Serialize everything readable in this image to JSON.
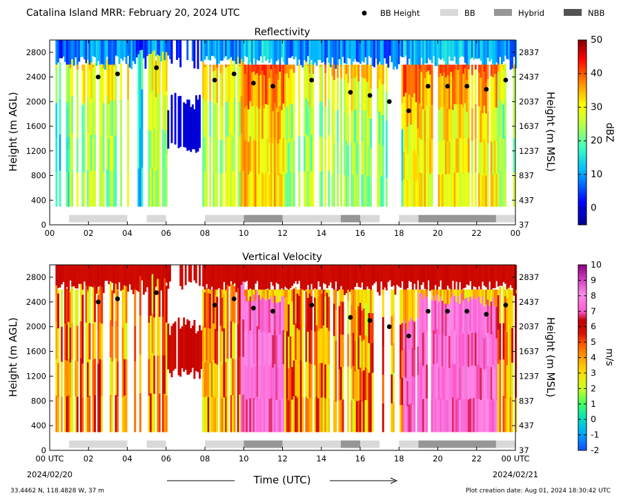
{
  "figure": {
    "title": "Catalina Island MRR:  February 20, 2024 UTC",
    "xlabel": "Time (UTC)",
    "date_start": "2024/02/20",
    "date_end": "2024/02/21",
    "location": "33.4462 N, 118.4828 W, 37 m",
    "creation": "Plot creation date: Aug 01, 2024 18:30:42 UTC"
  },
  "legend": [
    {
      "name": "BB Height",
      "type": "dot",
      "color": "#000000"
    },
    {
      "name": "BB",
      "type": "box",
      "color": "#d9d9d9"
    },
    {
      "name": "Hybrid",
      "type": "box",
      "color": "#969696"
    },
    {
      "name": "NBB",
      "type": "box",
      "color": "#525252"
    }
  ],
  "colors": {
    "bb": "#d9d9d9",
    "hybrid": "#969696",
    "nbb": "#525252",
    "dot": "#000000"
  },
  "chart_data": [
    {
      "type": "heatmap",
      "title": "Reflectivity",
      "ylabel": "Height (m AGL)",
      "y2label": "Height (m MSL)",
      "colorbar_label": "dBZ",
      "xlim": [
        0,
        24
      ],
      "ylim": [
        0,
        3000
      ],
      "x_ticks": [
        "00",
        "02",
        "04",
        "06",
        "08",
        "10",
        "12",
        "14",
        "16",
        "18",
        "20",
        "22",
        "00"
      ],
      "y_ticks": [
        0,
        400,
        800,
        1200,
        1600,
        2000,
        2400,
        2800
      ],
      "y2_ticks": [
        37,
        437,
        837,
        1237,
        1637,
        2037,
        2437,
        2837
      ],
      "colorbar_ticks": [
        0,
        10,
        20,
        30,
        40,
        50
      ],
      "colorbar_range": [
        -5,
        50
      ],
      "bb_height": {
        "time": [
          2.5,
          3.5,
          5.5,
          8.5,
          9.5,
          10.5,
          11.5,
          13.5,
          15.5,
          16.5,
          17.5,
          18.5,
          19.5,
          20.5,
          21.5,
          22.5,
          23.5
        ],
        "height": [
          2400,
          2450,
          2550,
          2350,
          2450,
          2300,
          2250,
          2350,
          2150,
          2100,
          2000,
          1850,
          2250,
          2250,
          2250,
          2200,
          2350
        ]
      },
      "classification": [
        {
          "start": 1.0,
          "end": 4.0,
          "type": "BB"
        },
        {
          "start": 5.0,
          "end": 6.0,
          "type": "BB"
        },
        {
          "start": 8.0,
          "end": 10.0,
          "type": "BB"
        },
        {
          "start": 10.0,
          "end": 12.0,
          "type": "Hybrid"
        },
        {
          "start": 12.0,
          "end": 15.0,
          "type": "BB"
        },
        {
          "start": 15.0,
          "end": 16.0,
          "type": "Hybrid"
        },
        {
          "start": 16.0,
          "end": 17.0,
          "type": "BB"
        },
        {
          "start": 18.0,
          "end": 19.0,
          "type": "BB"
        },
        {
          "start": 19.0,
          "end": 23.0,
          "type": "Hybrid"
        },
        {
          "start": 23.0,
          "end": 24.0,
          "type": "BB"
        }
      ]
    },
    {
      "type": "heatmap",
      "title": "Vertical Velocity",
      "ylabel": "Height (m AGL)",
      "y2label": "Height (m MSL)",
      "colorbar_label": "m/s",
      "xlim": [
        0,
        24
      ],
      "ylim": [
        0,
        3000
      ],
      "x_ticks": [
        "00 UTC",
        "02",
        "04",
        "06",
        "08",
        "10",
        "12",
        "14",
        "16",
        "18",
        "20",
        "22",
        "00 UTC"
      ],
      "y_ticks": [
        0,
        400,
        800,
        1200,
        1600,
        2000,
        2400,
        2800
      ],
      "y2_ticks": [
        37,
        437,
        837,
        1237,
        1637,
        2037,
        2437,
        2837
      ],
      "colorbar_ticks": [
        -2,
        -1,
        0,
        1,
        2,
        3,
        4,
        5,
        6,
        7,
        8,
        9,
        10
      ],
      "colorbar_range": [
        -2,
        10
      ],
      "bb_height": {
        "time": [
          2.5,
          3.5,
          5.5,
          8.5,
          9.5,
          10.5,
          11.5,
          13.5,
          15.5,
          16.5,
          17.5,
          18.5,
          19.5,
          20.5,
          21.5,
          22.5,
          23.5
        ],
        "height": [
          2400,
          2450,
          2550,
          2350,
          2450,
          2300,
          2250,
          2350,
          2150,
          2100,
          2000,
          1850,
          2250,
          2250,
          2250,
          2200,
          2350
        ]
      },
      "classification": [
        {
          "start": 1.0,
          "end": 4.0,
          "type": "BB"
        },
        {
          "start": 5.0,
          "end": 6.0,
          "type": "BB"
        },
        {
          "start": 8.0,
          "end": 10.0,
          "type": "BB"
        },
        {
          "start": 10.0,
          "end": 12.0,
          "type": "Hybrid"
        },
        {
          "start": 12.0,
          "end": 15.0,
          "type": "BB"
        },
        {
          "start": 15.0,
          "end": 16.0,
          "type": "Hybrid"
        },
        {
          "start": 16.0,
          "end": 17.0,
          "type": "BB"
        },
        {
          "start": 18.0,
          "end": 19.0,
          "type": "BB"
        },
        {
          "start": 19.0,
          "end": 23.0,
          "type": "Hybrid"
        },
        {
          "start": 23.0,
          "end": 24.0,
          "type": "BB"
        }
      ]
    }
  ]
}
